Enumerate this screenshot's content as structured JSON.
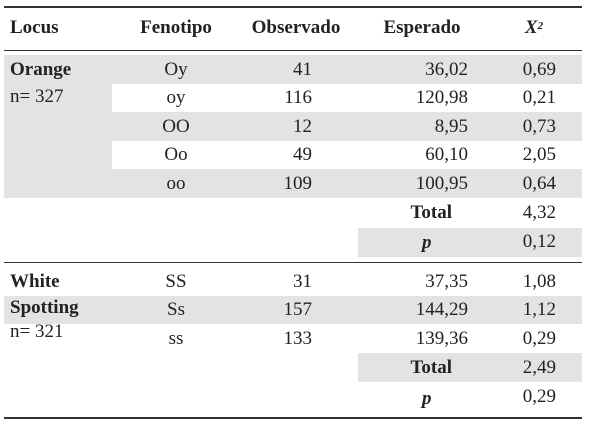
{
  "header": {
    "locus": "Locus",
    "fenotipo": "Fenotipo",
    "observado": "Observado",
    "esperado": "Esperado",
    "x2_base": "X",
    "x2_sup": "2"
  },
  "groups": [
    {
      "name": "Orange",
      "name2": "",
      "n": "n= 327",
      "rows": [
        {
          "fenotipo": "Oy",
          "observado": "41",
          "esperado": "36,02",
          "x2": "0,69"
        },
        {
          "fenotipo": "oy",
          "observado": "116",
          "esperado": "120,98",
          "x2": "0,21"
        },
        {
          "fenotipo": "OO",
          "observado": "12",
          "esperado": "8,95",
          "x2": "0,73"
        },
        {
          "fenotipo": "Oo",
          "observado": "49",
          "esperado": "60,10",
          "x2": "2,05"
        },
        {
          "fenotipo": "oo",
          "observado": "109",
          "esperado": "100,95",
          "x2": "0,64"
        }
      ],
      "total_label": "Total",
      "total_value": "4,32",
      "p_label": "p",
      "p_value": "0,12"
    },
    {
      "name": "White",
      "name2": "Spotting",
      "n": "n= 321",
      "rows": [
        {
          "fenotipo": "SS",
          "observado": "31",
          "esperado": "37,35",
          "x2": "1,08"
        },
        {
          "fenotipo": "Ss",
          "observado": "157",
          "esperado": "144,29",
          "x2": "1,12"
        },
        {
          "fenotipo": "ss",
          "observado": "133",
          "esperado": "139,36",
          "x2": "0,29"
        }
      ],
      "total_label": "Total",
      "total_value": "2,49",
      "p_label": "p",
      "p_value": "0,29"
    }
  ]
}
